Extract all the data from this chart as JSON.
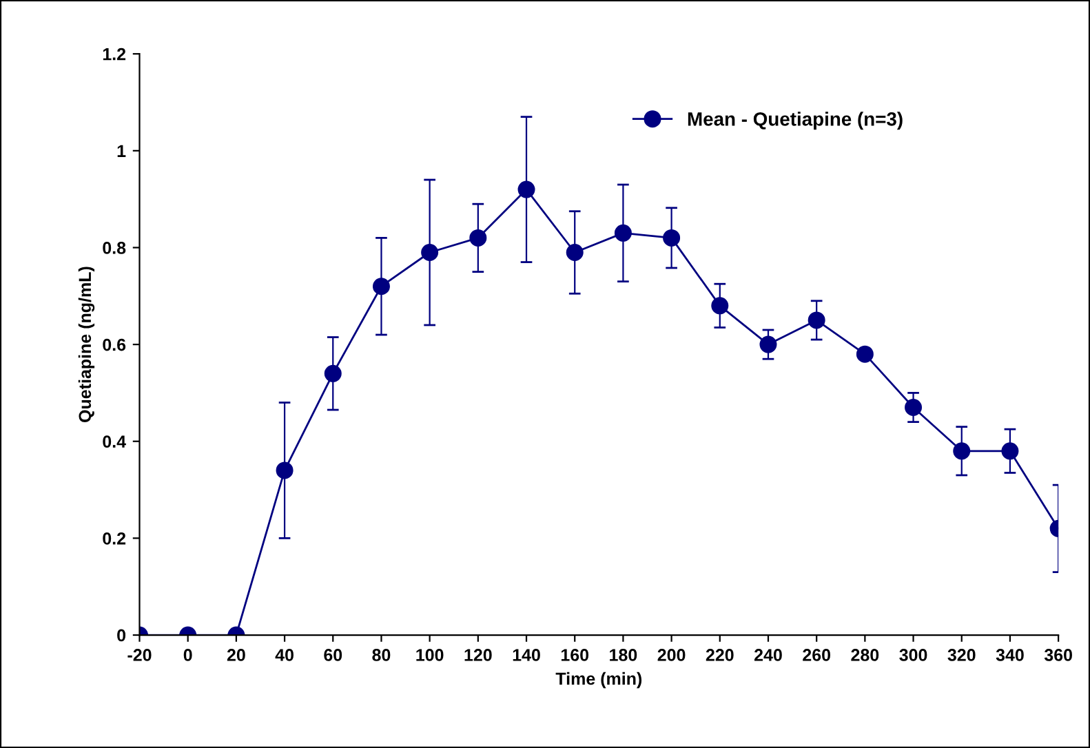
{
  "chart_data": {
    "type": "line",
    "xlabel": "Time (min)",
    "ylabel": "Quetiapine (ng/mL)",
    "x": [
      -20,
      0,
      20,
      40,
      60,
      80,
      100,
      120,
      140,
      160,
      180,
      200,
      220,
      240,
      260,
      280,
      300,
      320,
      340,
      360
    ],
    "series": [
      {
        "name": "Mean - Quetiapine (n=3)",
        "color": "#000080",
        "values": [
          0,
          0,
          0,
          0.34,
          0.54,
          0.72,
          0.79,
          0.82,
          0.92,
          0.79,
          0.83,
          0.82,
          0.68,
          0.6,
          0.65,
          0.58,
          0.47,
          0.38,
          0.38,
          0.22
        ],
        "errors": [
          null,
          null,
          null,
          0.14,
          0.075,
          0.1,
          0.15,
          0.07,
          0.15,
          0.085,
          0.1,
          0.062,
          0.045,
          0.03,
          0.04,
          0.01,
          0.03,
          0.05,
          0.045,
          0.09
        ]
      }
    ],
    "xlim": [
      -20,
      360
    ],
    "xticks": [
      -20,
      0,
      20,
      40,
      60,
      80,
      100,
      120,
      140,
      160,
      180,
      200,
      220,
      240,
      260,
      280,
      300,
      320,
      340,
      360
    ],
    "ylim": [
      0,
      1.2
    ],
    "yticks": [
      0,
      0.2,
      0.4,
      0.6,
      0.8,
      1,
      1.2
    ],
    "marker": "circle",
    "line_style": "solid",
    "legend": "top right",
    "grid": false
  }
}
